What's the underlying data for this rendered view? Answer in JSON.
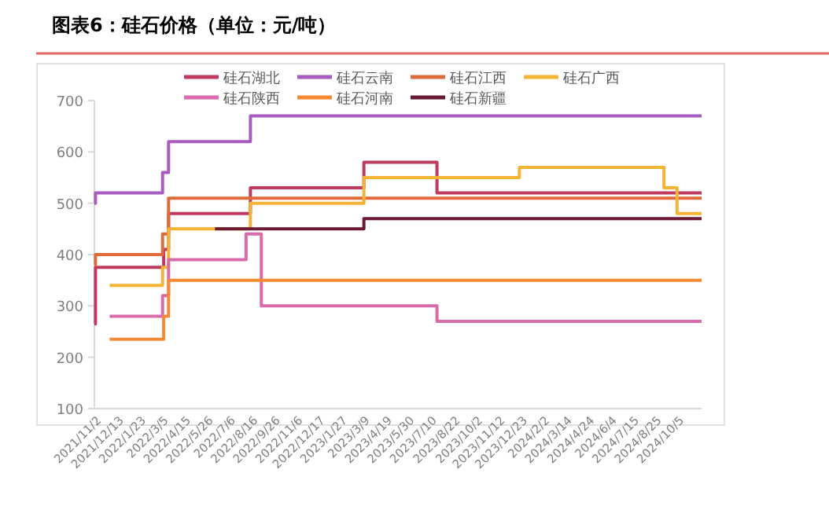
{
  "chart_data": {
    "type": "step",
    "title": "图表6：硅石价格（单位：元/吨）",
    "xlim": [
      "2021-10-28",
      "2024-11-14"
    ],
    "xticks": [
      {
        "value": "2021-11-02",
        "label": "2021/11/2"
      },
      {
        "value": "2021-12-13",
        "label": "2021/12/13"
      },
      {
        "value": "2022-01-23",
        "label": "2022/1/23"
      },
      {
        "value": "2022-03-05",
        "label": "2022/3/5"
      },
      {
        "value": "2022-04-15",
        "label": "2022/4/15"
      },
      {
        "value": "2022-05-26",
        "label": "2022/5/26"
      },
      {
        "value": "2022-07-06",
        "label": "2022/7/6"
      },
      {
        "value": "2022-08-16",
        "label": "2022/8/16"
      },
      {
        "value": "2022-09-26",
        "label": "2022/9/26"
      },
      {
        "value": "2022-11-06",
        "label": "2022/11/6"
      },
      {
        "value": "2022-12-17",
        "label": "2022/12/17"
      },
      {
        "value": "2023-01-27",
        "label": "2023/1/27"
      },
      {
        "value": "2023-03-09",
        "label": "2023/3/9"
      },
      {
        "value": "2023-04-19",
        "label": "2023/4/19"
      },
      {
        "value": "2023-05-30",
        "label": "2023/5/30"
      },
      {
        "value": "2023-07-10",
        "label": "2023/7/10"
      },
      {
        "value": "2023-08-22",
        "label": "2023/8/22"
      },
      {
        "value": "2023-10-02",
        "label": "2023/10/2"
      },
      {
        "value": "2023-11-12",
        "label": "2023/11/12"
      },
      {
        "value": "2023-12-23",
        "label": "2023/12/23"
      },
      {
        "value": "2024-02-02",
        "label": "2024/2/2"
      },
      {
        "value": "2024-03-14",
        "label": "2024/3/14"
      },
      {
        "value": "2024-04-24",
        "label": "2024/4/24"
      },
      {
        "value": "2024-06-04",
        "label": "2024/6/4"
      },
      {
        "value": "2024-07-15",
        "label": "2024/7/15"
      },
      {
        "value": "2024-08-25",
        "label": "2024/8/25"
      },
      {
        "value": "2024-10-05",
        "label": "2024/10/5"
      }
    ],
    "ylim": [
      100,
      700
    ],
    "yticks": [
      100,
      200,
      300,
      400,
      500,
      600,
      700
    ],
    "grid": false,
    "legend": "top",
    "marker": "none",
    "line_style": "solid",
    "series": [
      {
        "name": "硅石湖北",
        "color": "#c0395f",
        "x": [
          "2021-10-28",
          "2021-10-30",
          "2022-03-04",
          "2022-03-13",
          "2022-08-10",
          "2023-03-06",
          "2023-07-18",
          "2024-11-14"
        ],
        "values": [
          265,
          375,
          410,
          480,
          530,
          580,
          520,
          520
        ]
      },
      {
        "name": "硅石云南",
        "color": "#a95cc0",
        "x": [
          "2021-10-28",
          "2021-10-30",
          "2022-03-02",
          "2022-03-13",
          "2022-08-10",
          "2024-11-14"
        ],
        "values": [
          500,
          520,
          560,
          620,
          670,
          670
        ]
      },
      {
        "name": "硅石江西",
        "color": "#e06b3a",
        "x": [
          "2021-10-28",
          "2021-10-30",
          "2022-03-02",
          "2022-03-13",
          "2024-11-14"
        ],
        "values": [
          380,
          400,
          440,
          510,
          510
        ]
      },
      {
        "name": "硅石广西",
        "color": "#f5b335",
        "x": [
          "2021-11-25",
          "2022-03-02",
          "2022-03-13",
          "2022-08-10",
          "2023-03-06",
          "2023-12-16",
          "2024-09-06",
          "2024-09-30",
          "2024-11-14"
        ],
        "values": [
          340,
          375,
          450,
          500,
          550,
          570,
          530,
          480,
          480
        ]
      },
      {
        "name": "硅石陕西",
        "color": "#d96bab",
        "x": [
          "2021-11-25",
          "2022-03-02",
          "2022-03-13",
          "2022-08-02",
          "2022-08-30",
          "2023-07-18",
          "2024-11-14"
        ],
        "values": [
          280,
          320,
          390,
          440,
          300,
          270,
          270
        ]
      },
      {
        "name": "硅石河南",
        "color": "#f58a35",
        "x": [
          "2021-11-25",
          "2022-03-04",
          "2022-03-13",
          "2024-11-14"
        ],
        "values": [
          235,
          280,
          350,
          350
        ]
      },
      {
        "name": "硅石新疆",
        "color": "#6b1a35",
        "x": [
          "2022-06-06",
          "2023-03-06",
          "2024-11-14"
        ],
        "values": [
          450,
          470,
          470
        ]
      }
    ]
  }
}
